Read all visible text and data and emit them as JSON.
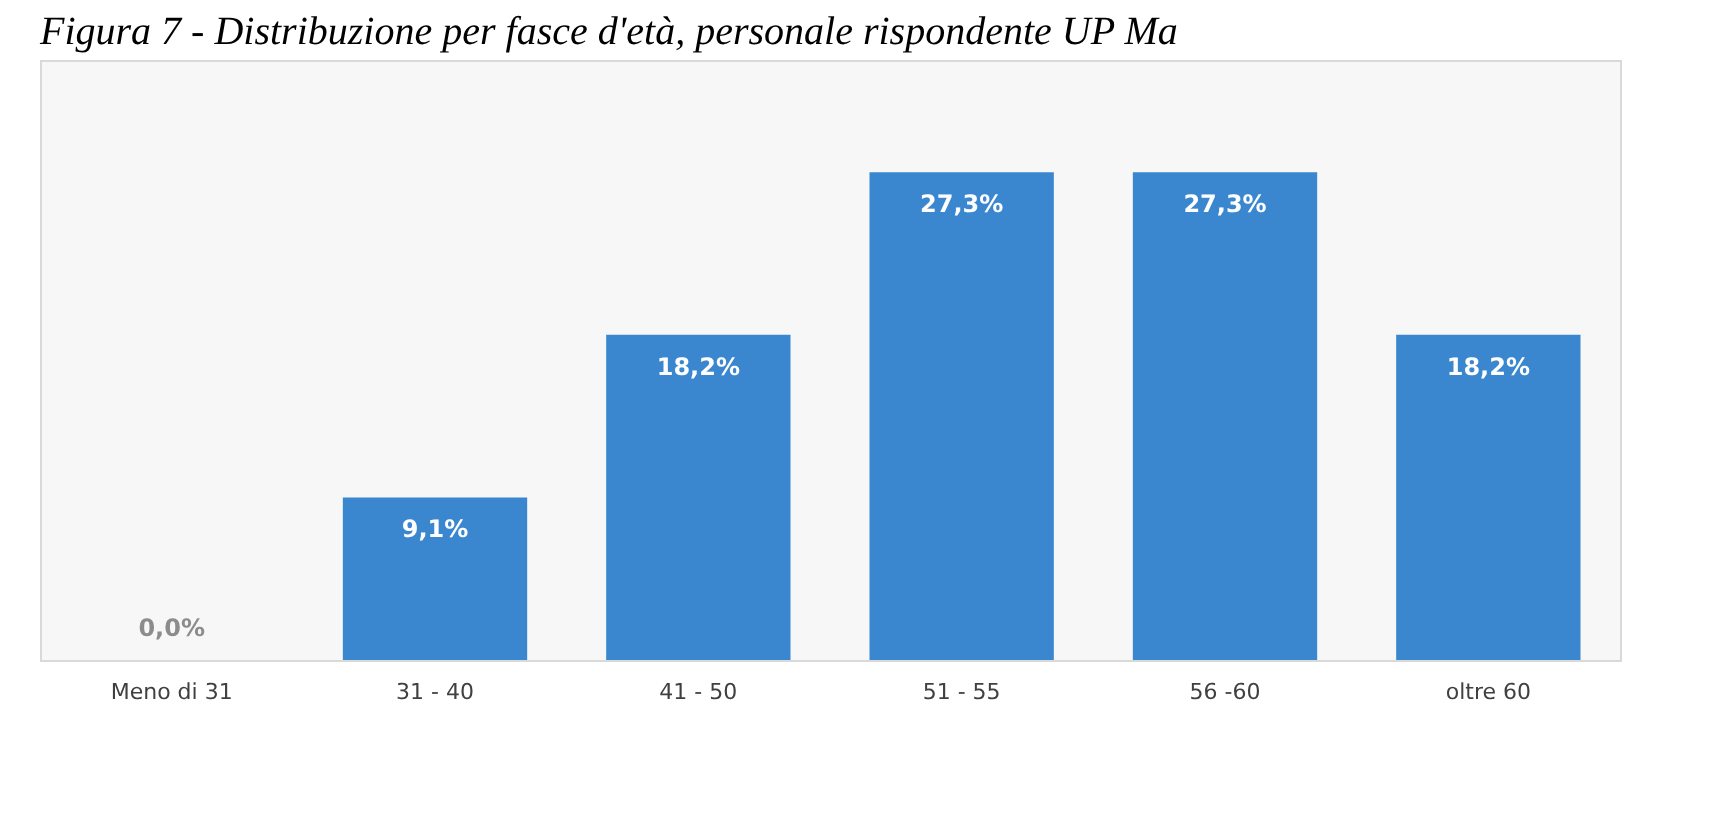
{
  "chart_data": {
    "type": "bar",
    "title": "Figura 7 - Distribuzione per fasce d'età, personale rispondente UP Ma",
    "categories": [
      "Meno di 31",
      "31 - 40",
      "41 - 50",
      "51 - 55",
      "56 -60",
      "oltre 60"
    ],
    "values": [
      0.0,
      9.1,
      18.2,
      27.3,
      27.3,
      18.2
    ],
    "value_labels": [
      "0,0%",
      "9,1%",
      "18,2%",
      "27,3%",
      "27,3%",
      "18,2%"
    ],
    "color": "#3a87d0",
    "grid": false
  }
}
